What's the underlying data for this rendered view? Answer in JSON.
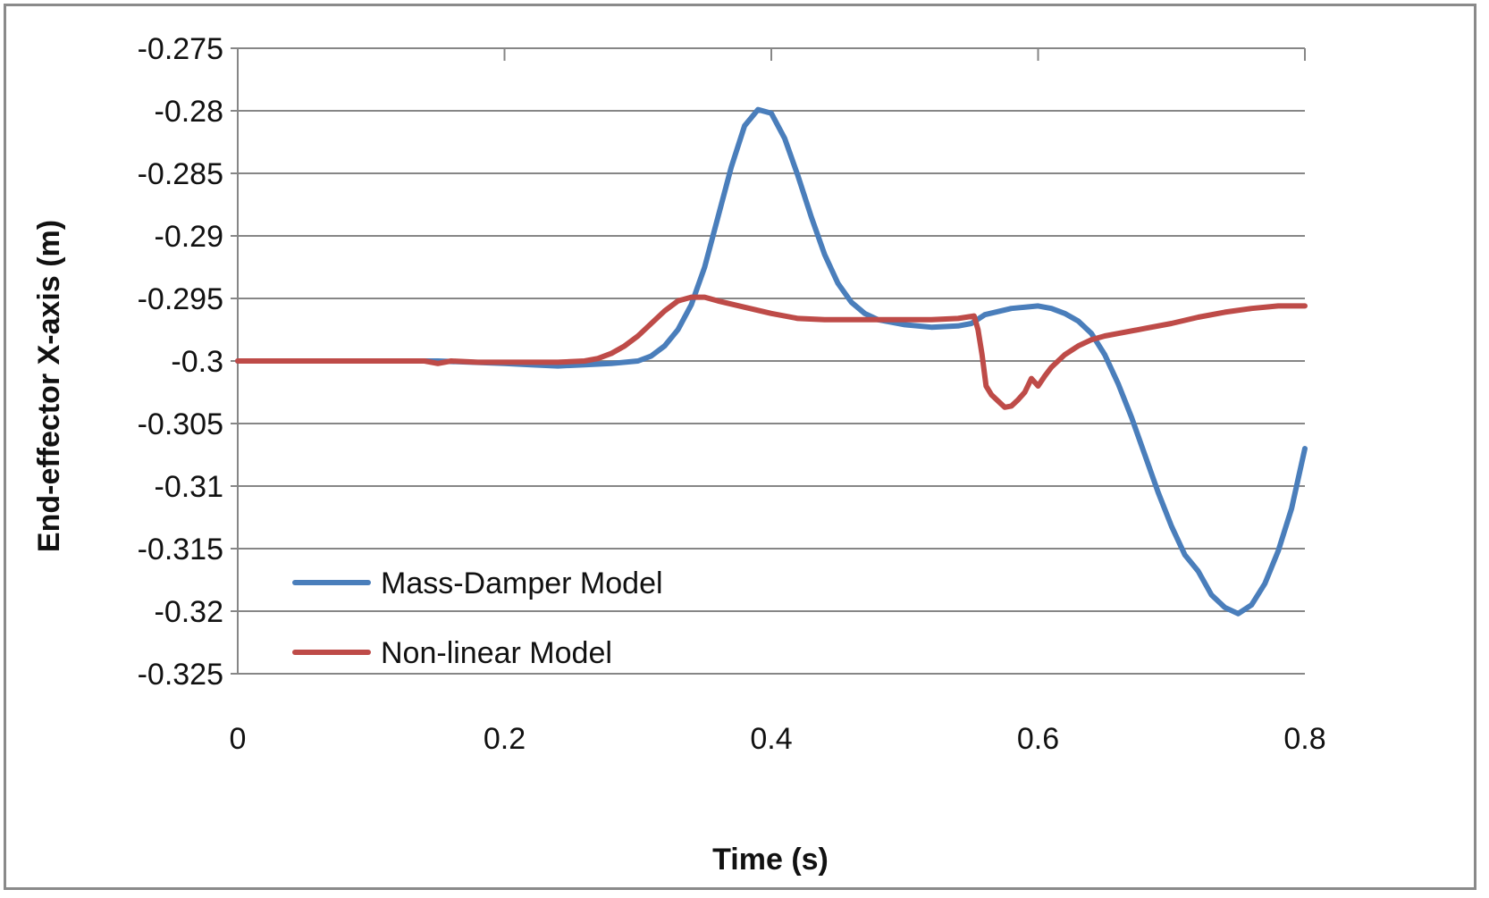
{
  "chart_data": {
    "type": "line",
    "title": "",
    "xlabel": "Time (s)",
    "ylabel": "End-effector X-axis (m)",
    "xlim": [
      0,
      0.8
    ],
    "ylim": [
      -0.325,
      -0.275
    ],
    "x_ticks": [
      "0",
      "0.2",
      "0.4",
      "0.6",
      "0.8"
    ],
    "x_tick_values": [
      0,
      0.2,
      0.4,
      0.6,
      0.8
    ],
    "y_ticks": [
      "-0.275",
      "-0.28",
      "-0.285",
      "-0.29",
      "-0.295",
      "-0.3",
      "-0.305",
      "-0.31",
      "-0.315",
      "-0.32",
      "-0.325"
    ],
    "y_tick_values": [
      -0.275,
      -0.28,
      -0.285,
      -0.29,
      -0.295,
      -0.3,
      -0.305,
      -0.31,
      -0.315,
      -0.32,
      -0.325
    ],
    "grid": "horizontal",
    "legend_position": "bottom-left",
    "series": [
      {
        "name": "Mass-Damper Model",
        "color": "#4a7ebb",
        "x": [
          0,
          0.1,
          0.15,
          0.2,
          0.22,
          0.24,
          0.26,
          0.28,
          0.3,
          0.31,
          0.32,
          0.33,
          0.34,
          0.35,
          0.36,
          0.37,
          0.38,
          0.39,
          0.4,
          0.41,
          0.42,
          0.43,
          0.44,
          0.45,
          0.46,
          0.47,
          0.48,
          0.5,
          0.52,
          0.54,
          0.55,
          0.56,
          0.58,
          0.6,
          0.61,
          0.62,
          0.63,
          0.64,
          0.65,
          0.66,
          0.67,
          0.68,
          0.69,
          0.7,
          0.71,
          0.72,
          0.73,
          0.74,
          0.75,
          0.76,
          0.77,
          0.78,
          0.79,
          0.8
        ],
        "y": [
          -0.3,
          -0.3,
          -0.3,
          -0.3002,
          -0.3003,
          -0.3004,
          -0.3003,
          -0.3002,
          -0.3,
          -0.2996,
          -0.2988,
          -0.2975,
          -0.2955,
          -0.2925,
          -0.2885,
          -0.2845,
          -0.2812,
          -0.2799,
          -0.2802,
          -0.2822,
          -0.2852,
          -0.2885,
          -0.2915,
          -0.2938,
          -0.2953,
          -0.2962,
          -0.2967,
          -0.2971,
          -0.2973,
          -0.2972,
          -0.297,
          -0.2963,
          -0.2958,
          -0.2956,
          -0.2958,
          -0.2962,
          -0.2968,
          -0.2978,
          -0.2995,
          -0.3018,
          -0.3045,
          -0.3075,
          -0.3105,
          -0.3132,
          -0.3155,
          -0.3168,
          -0.3187,
          -0.3197,
          -0.3202,
          -0.3195,
          -0.3178,
          -0.3152,
          -0.3118,
          -0.307
        ]
      },
      {
        "name": "Non-linear Model",
        "color": "#be4b48",
        "x": [
          0,
          0.1,
          0.14,
          0.15,
          0.16,
          0.18,
          0.2,
          0.22,
          0.24,
          0.26,
          0.27,
          0.28,
          0.29,
          0.3,
          0.31,
          0.32,
          0.33,
          0.34,
          0.35,
          0.36,
          0.38,
          0.4,
          0.42,
          0.44,
          0.46,
          0.48,
          0.5,
          0.52,
          0.54,
          0.552,
          0.555,
          0.558,
          0.561,
          0.565,
          0.57,
          0.575,
          0.58,
          0.585,
          0.59,
          0.595,
          0.6,
          0.605,
          0.61,
          0.62,
          0.63,
          0.64,
          0.65,
          0.66,
          0.68,
          0.7,
          0.72,
          0.74,
          0.76,
          0.78,
          0.8
        ],
        "y": [
          -0.3,
          -0.3,
          -0.3,
          -0.3002,
          -0.3,
          -0.3001,
          -0.3001,
          -0.3001,
          -0.3001,
          -0.3,
          -0.2998,
          -0.2994,
          -0.2988,
          -0.298,
          -0.297,
          -0.296,
          -0.2952,
          -0.2949,
          -0.2949,
          -0.2952,
          -0.2957,
          -0.2962,
          -0.2966,
          -0.2967,
          -0.2967,
          -0.2967,
          -0.2967,
          -0.2967,
          -0.2966,
          -0.2964,
          -0.2975,
          -0.2995,
          -0.302,
          -0.3027,
          -0.3032,
          -0.3037,
          -0.3036,
          -0.3031,
          -0.3025,
          -0.3014,
          -0.302,
          -0.3012,
          -0.3005,
          -0.2995,
          -0.2988,
          -0.2983,
          -0.298,
          -0.2978,
          -0.2974,
          -0.297,
          -0.2965,
          -0.2961,
          -0.2958,
          -0.2956,
          -0.2956
        ]
      }
    ]
  }
}
